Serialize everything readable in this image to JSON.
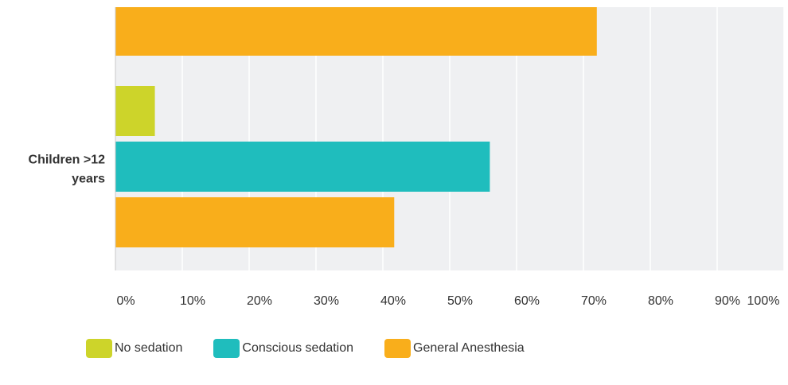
{
  "chart_data": {
    "type": "bar",
    "orientation": "horizontal",
    "categories": [
      "",
      "Children >12 years"
    ],
    "series": [
      {
        "name": "No sedation",
        "color": "#CDD42A",
        "values": [
          null,
          5.9
        ]
      },
      {
        "name": "Conscious sedation",
        "color": "#1FBDBD",
        "values": [
          null,
          56.0
        ]
      },
      {
        "name": "General Anesthesia",
        "color": "#F9AE1B",
        "values": [
          72.0,
          41.7
        ]
      }
    ],
    "x_ticks": [
      "0%",
      "10%",
      "20%",
      "30%",
      "40%",
      "50%",
      "60%",
      "70%",
      "80%",
      "90%",
      "100%"
    ],
    "xlim": [
      0,
      100
    ],
    "grid": true,
    "legend_position": "bottom-left",
    "colors": {
      "plot_background": "#EFF0F2",
      "gridline": "#FFFFFF",
      "axis": "#C8C8C8"
    }
  }
}
